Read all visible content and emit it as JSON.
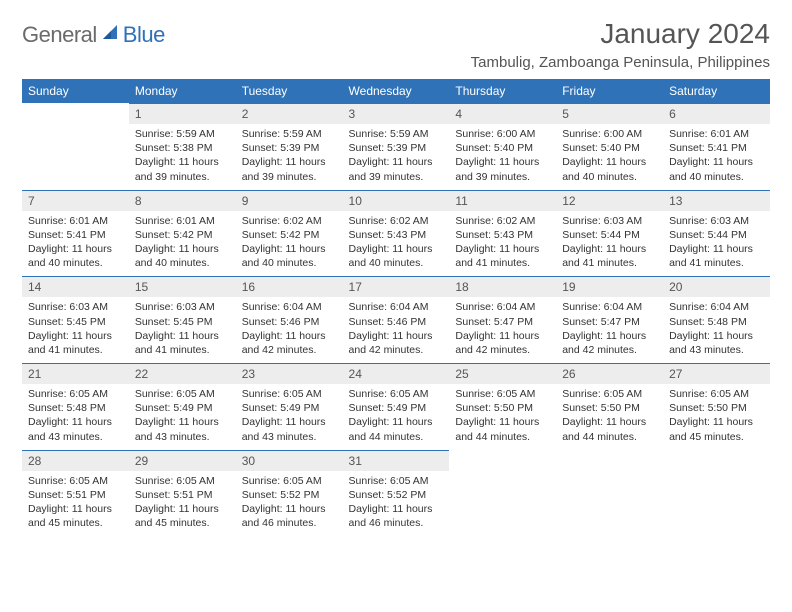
{
  "brand": {
    "general": "General",
    "blue": "Blue"
  },
  "title": "January 2024",
  "location": "Tambulig, Zamboanga Peninsula, Philippines",
  "colors": {
    "header_bg": "#2f72b8",
    "header_fg": "#ffffff",
    "daynum_bg": "#ededed",
    "text": "#333333",
    "rule": "#2f72b8",
    "logo_gray": "#6a6a6a",
    "logo_blue": "#2f72b8",
    "page_bg": "#ffffff"
  },
  "typography": {
    "title_size_pt": 21,
    "location_size_pt": 11,
    "weekday_size_pt": 9,
    "body_size_pt": 8
  },
  "weekdays": [
    "Sunday",
    "Monday",
    "Tuesday",
    "Wednesday",
    "Thursday",
    "Friday",
    "Saturday"
  ],
  "weeks": [
    [
      null,
      {
        "n": "1",
        "sunrise": "Sunrise: 5:59 AM",
        "sunset": "Sunset: 5:38 PM",
        "daylight": "Daylight: 11 hours and 39 minutes."
      },
      {
        "n": "2",
        "sunrise": "Sunrise: 5:59 AM",
        "sunset": "Sunset: 5:39 PM",
        "daylight": "Daylight: 11 hours and 39 minutes."
      },
      {
        "n": "3",
        "sunrise": "Sunrise: 5:59 AM",
        "sunset": "Sunset: 5:39 PM",
        "daylight": "Daylight: 11 hours and 39 minutes."
      },
      {
        "n": "4",
        "sunrise": "Sunrise: 6:00 AM",
        "sunset": "Sunset: 5:40 PM",
        "daylight": "Daylight: 11 hours and 39 minutes."
      },
      {
        "n": "5",
        "sunrise": "Sunrise: 6:00 AM",
        "sunset": "Sunset: 5:40 PM",
        "daylight": "Daylight: 11 hours and 40 minutes."
      },
      {
        "n": "6",
        "sunrise": "Sunrise: 6:01 AM",
        "sunset": "Sunset: 5:41 PM",
        "daylight": "Daylight: 11 hours and 40 minutes."
      }
    ],
    [
      {
        "n": "7",
        "sunrise": "Sunrise: 6:01 AM",
        "sunset": "Sunset: 5:41 PM",
        "daylight": "Daylight: 11 hours and 40 minutes."
      },
      {
        "n": "8",
        "sunrise": "Sunrise: 6:01 AM",
        "sunset": "Sunset: 5:42 PM",
        "daylight": "Daylight: 11 hours and 40 minutes."
      },
      {
        "n": "9",
        "sunrise": "Sunrise: 6:02 AM",
        "sunset": "Sunset: 5:42 PM",
        "daylight": "Daylight: 11 hours and 40 minutes."
      },
      {
        "n": "10",
        "sunrise": "Sunrise: 6:02 AM",
        "sunset": "Sunset: 5:43 PM",
        "daylight": "Daylight: 11 hours and 40 minutes."
      },
      {
        "n": "11",
        "sunrise": "Sunrise: 6:02 AM",
        "sunset": "Sunset: 5:43 PM",
        "daylight": "Daylight: 11 hours and 41 minutes."
      },
      {
        "n": "12",
        "sunrise": "Sunrise: 6:03 AM",
        "sunset": "Sunset: 5:44 PM",
        "daylight": "Daylight: 11 hours and 41 minutes."
      },
      {
        "n": "13",
        "sunrise": "Sunrise: 6:03 AM",
        "sunset": "Sunset: 5:44 PM",
        "daylight": "Daylight: 11 hours and 41 minutes."
      }
    ],
    [
      {
        "n": "14",
        "sunrise": "Sunrise: 6:03 AM",
        "sunset": "Sunset: 5:45 PM",
        "daylight": "Daylight: 11 hours and 41 minutes."
      },
      {
        "n": "15",
        "sunrise": "Sunrise: 6:03 AM",
        "sunset": "Sunset: 5:45 PM",
        "daylight": "Daylight: 11 hours and 41 minutes."
      },
      {
        "n": "16",
        "sunrise": "Sunrise: 6:04 AM",
        "sunset": "Sunset: 5:46 PM",
        "daylight": "Daylight: 11 hours and 42 minutes."
      },
      {
        "n": "17",
        "sunrise": "Sunrise: 6:04 AM",
        "sunset": "Sunset: 5:46 PM",
        "daylight": "Daylight: 11 hours and 42 minutes."
      },
      {
        "n": "18",
        "sunrise": "Sunrise: 6:04 AM",
        "sunset": "Sunset: 5:47 PM",
        "daylight": "Daylight: 11 hours and 42 minutes."
      },
      {
        "n": "19",
        "sunrise": "Sunrise: 6:04 AM",
        "sunset": "Sunset: 5:47 PM",
        "daylight": "Daylight: 11 hours and 42 minutes."
      },
      {
        "n": "20",
        "sunrise": "Sunrise: 6:04 AM",
        "sunset": "Sunset: 5:48 PM",
        "daylight": "Daylight: 11 hours and 43 minutes."
      }
    ],
    [
      {
        "n": "21",
        "sunrise": "Sunrise: 6:05 AM",
        "sunset": "Sunset: 5:48 PM",
        "daylight": "Daylight: 11 hours and 43 minutes."
      },
      {
        "n": "22",
        "sunrise": "Sunrise: 6:05 AM",
        "sunset": "Sunset: 5:49 PM",
        "daylight": "Daylight: 11 hours and 43 minutes."
      },
      {
        "n": "23",
        "sunrise": "Sunrise: 6:05 AM",
        "sunset": "Sunset: 5:49 PM",
        "daylight": "Daylight: 11 hours and 43 minutes."
      },
      {
        "n": "24",
        "sunrise": "Sunrise: 6:05 AM",
        "sunset": "Sunset: 5:49 PM",
        "daylight": "Daylight: 11 hours and 44 minutes."
      },
      {
        "n": "25",
        "sunrise": "Sunrise: 6:05 AM",
        "sunset": "Sunset: 5:50 PM",
        "daylight": "Daylight: 11 hours and 44 minutes."
      },
      {
        "n": "26",
        "sunrise": "Sunrise: 6:05 AM",
        "sunset": "Sunset: 5:50 PM",
        "daylight": "Daylight: 11 hours and 44 minutes."
      },
      {
        "n": "27",
        "sunrise": "Sunrise: 6:05 AM",
        "sunset": "Sunset: 5:50 PM",
        "daylight": "Daylight: 11 hours and 45 minutes."
      }
    ],
    [
      {
        "n": "28",
        "sunrise": "Sunrise: 6:05 AM",
        "sunset": "Sunset: 5:51 PM",
        "daylight": "Daylight: 11 hours and 45 minutes."
      },
      {
        "n": "29",
        "sunrise": "Sunrise: 6:05 AM",
        "sunset": "Sunset: 5:51 PM",
        "daylight": "Daylight: 11 hours and 45 minutes."
      },
      {
        "n": "30",
        "sunrise": "Sunrise: 6:05 AM",
        "sunset": "Sunset: 5:52 PM",
        "daylight": "Daylight: 11 hours and 46 minutes."
      },
      {
        "n": "31",
        "sunrise": "Sunrise: 6:05 AM",
        "sunset": "Sunset: 5:52 PM",
        "daylight": "Daylight: 11 hours and 46 minutes."
      },
      null,
      null,
      null
    ]
  ]
}
